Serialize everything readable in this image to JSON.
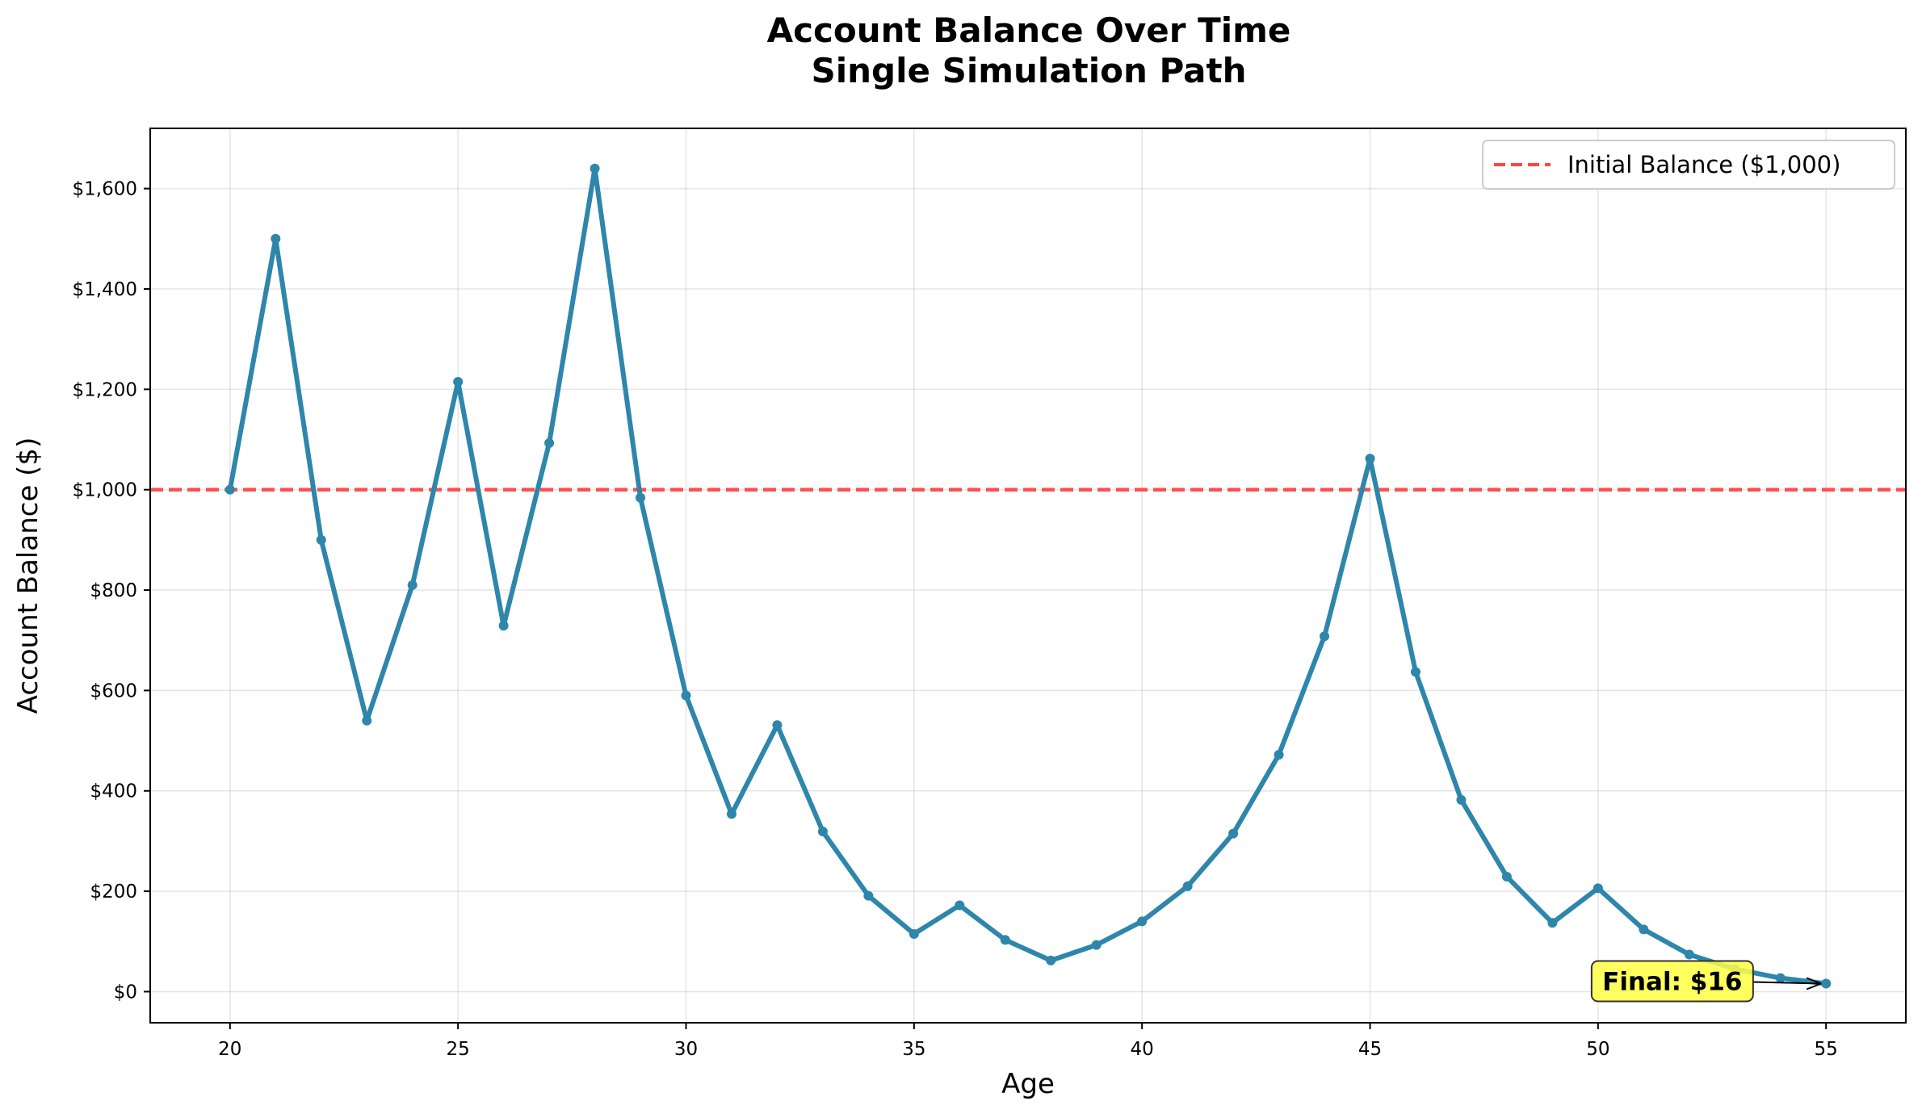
{
  "chart_data": {
    "type": "line",
    "title_line1": "Account Balance Over Time",
    "title_line2": "Single Simulation Path",
    "xlabel": "Age",
    "ylabel": "Account Balance ($)",
    "xlim": [
      18.25,
      56.75
    ],
    "ylim": [
      -62,
      1720
    ],
    "xticks": [
      20,
      25,
      30,
      35,
      40,
      45,
      50,
      55
    ],
    "yticks": [
      0,
      200,
      400,
      600,
      800,
      1000,
      1200,
      1400,
      1600
    ],
    "ytick_labels": [
      "$0",
      "$200",
      "$400",
      "$600",
      "$800",
      "$1,000",
      "$1,200",
      "$1,400",
      "$1,600"
    ],
    "grid": true,
    "legend_position": "top-right",
    "series": [
      {
        "color": "#2e86ab",
        "x": [
          20,
          21,
          22,
          23,
          24,
          25,
          26,
          27,
          28,
          29,
          30,
          31,
          32,
          33,
          34,
          35,
          36,
          37,
          38,
          39,
          40,
          41,
          42,
          43,
          44,
          45,
          46,
          47,
          48,
          49,
          50,
          51,
          52,
          53,
          54,
          55
        ],
        "values": [
          1000,
          1500,
          900,
          540,
          810,
          1215,
          729,
          1093,
          1640,
          984,
          590,
          354,
          531,
          319,
          191,
          115,
          172,
          103,
          62,
          93,
          140,
          210,
          315,
          472,
          708,
          1062,
          637,
          382,
          229,
          137,
          206,
          124,
          74,
          45,
          27,
          16
        ]
      }
    ],
    "reference_line": {
      "label": "Initial Balance ($1,000)",
      "y": 1000,
      "color": "#ff4444",
      "style": "dashed"
    },
    "annotation": {
      "text": "Final: $16",
      "point_x": 55,
      "point_y": 16,
      "text_x": 50,
      "text_y": 16,
      "box_color": "#ffff44"
    }
  }
}
